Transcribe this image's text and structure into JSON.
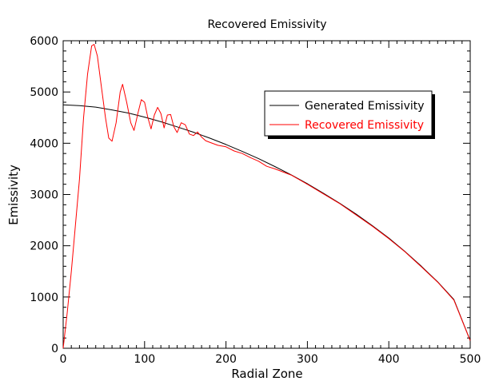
{
  "chart_data": {
    "type": "line",
    "title": "Recovered Emissivity",
    "xlabel": "Radial Zone",
    "ylabel": "Emissivity",
    "xlim": [
      0,
      500
    ],
    "ylim": [
      0,
      6000
    ],
    "x_ticks": [
      "0",
      "100",
      "200",
      "300",
      "400",
      "500"
    ],
    "y_ticks": [
      "0",
      "1000",
      "2000",
      "3000",
      "4000",
      "5000",
      "6000"
    ],
    "grid": false,
    "legend_position": "upper-right",
    "series": [
      {
        "name": "Generated Emissivity",
        "color": "#000000",
        "points": [
          [
            0,
            4750
          ],
          [
            20,
            4735
          ],
          [
            40,
            4705
          ],
          [
            60,
            4650
          ],
          [
            80,
            4590
          ],
          [
            100,
            4510
          ],
          [
            120,
            4420
          ],
          [
            140,
            4320
          ],
          [
            160,
            4215
          ],
          [
            180,
            4100
          ],
          [
            200,
            3975
          ],
          [
            220,
            3840
          ],
          [
            240,
            3700
          ],
          [
            260,
            3545
          ],
          [
            280,
            3385
          ],
          [
            300,
            3210
          ],
          [
            320,
            3020
          ],
          [
            340,
            2825
          ],
          [
            360,
            2615
          ],
          [
            380,
            2390
          ],
          [
            400,
            2150
          ],
          [
            420,
            1885
          ],
          [
            440,
            1600
          ],
          [
            460,
            1295
          ],
          [
            480,
            950
          ],
          [
            500,
            150
          ]
        ]
      },
      {
        "name": "Recovered Emissivity",
        "color": "#ff0000",
        "points": [
          [
            0,
            0
          ],
          [
            5,
            700
          ],
          [
            10,
            1500
          ],
          [
            15,
            2400
          ],
          [
            20,
            3300
          ],
          [
            25,
            4500
          ],
          [
            30,
            5350
          ],
          [
            35,
            5900
          ],
          [
            38,
            5930
          ],
          [
            42,
            5700
          ],
          [
            47,
            5100
          ],
          [
            52,
            4500
          ],
          [
            56,
            4100
          ],
          [
            60,
            4040
          ],
          [
            65,
            4400
          ],
          [
            70,
            5000
          ],
          [
            73,
            5150
          ],
          [
            78,
            4800
          ],
          [
            83,
            4400
          ],
          [
            87,
            4250
          ],
          [
            92,
            4600
          ],
          [
            96,
            4850
          ],
          [
            100,
            4800
          ],
          [
            104,
            4500
          ],
          [
            108,
            4280
          ],
          [
            112,
            4550
          ],
          [
            116,
            4700
          ],
          [
            120,
            4580
          ],
          [
            124,
            4300
          ],
          [
            128,
            4550
          ],
          [
            132,
            4560
          ],
          [
            136,
            4320
          ],
          [
            140,
            4210
          ],
          [
            145,
            4400
          ],
          [
            150,
            4360
          ],
          [
            155,
            4180
          ],
          [
            160,
            4150
          ],
          [
            165,
            4220
          ],
          [
            170,
            4120
          ],
          [
            175,
            4050
          ],
          [
            180,
            4020
          ],
          [
            190,
            3960
          ],
          [
            200,
            3930
          ],
          [
            210,
            3850
          ],
          [
            220,
            3800
          ],
          [
            230,
            3720
          ],
          [
            240,
            3650
          ],
          [
            250,
            3550
          ],
          [
            260,
            3500
          ],
          [
            280,
            3380
          ],
          [
            300,
            3200
          ],
          [
            320,
            3010
          ],
          [
            340,
            2820
          ],
          [
            360,
            2600
          ],
          [
            380,
            2380
          ],
          [
            400,
            2140
          ],
          [
            420,
            1880
          ],
          [
            440,
            1590
          ],
          [
            460,
            1290
          ],
          [
            480,
            940
          ],
          [
            500,
            150
          ]
        ]
      }
    ]
  }
}
